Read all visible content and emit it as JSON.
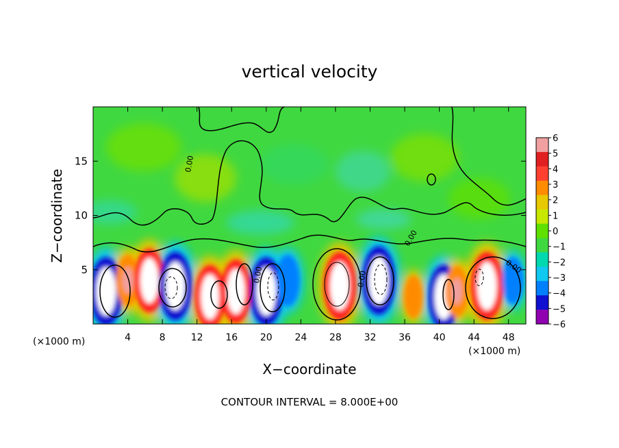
{
  "chart_data": {
    "type": "heatmap",
    "title": "vertical velocity",
    "xlabel": "X−coordinate",
    "ylabel": "Z−coordinate",
    "x_unit_left": "(×1000 m)",
    "x_unit_right": "(×1000 m)",
    "xlim": [
      0,
      50
    ],
    "ylim": [
      0,
      20
    ],
    "x_ticks": [
      "4",
      "8",
      "12",
      "16",
      "20",
      "24",
      "28",
      "32",
      "36",
      "40",
      "44",
      "48"
    ],
    "y_ticks": [
      "5",
      "10",
      "15"
    ],
    "x_tick_values": [
      4,
      8,
      12,
      16,
      20,
      24,
      28,
      32,
      36,
      40,
      44,
      48
    ],
    "y_tick_values": [
      5,
      10,
      15
    ],
    "colorbar": {
      "labels": [
        "6",
        "5",
        "4",
        "3",
        "2",
        "1",
        "0",
        "−1",
        "−2",
        "−3",
        "−4",
        "−5",
        "−6"
      ],
      "values": [
        6,
        5,
        4,
        3,
        2,
        1,
        0,
        -1,
        -2,
        -3,
        -4,
        -5,
        -6
      ],
      "colors": [
        "#f0a0a0",
        "#e02020",
        "#ff4030",
        "#ff8c00",
        "#e8c800",
        "#c8e800",
        "#60e000",
        "#40d840",
        "#00d8b0",
        "#10c8f0",
        "#0080ff",
        "#1010d0",
        "#9000b0"
      ]
    },
    "contour_label": "0.00",
    "footnote": "CONTOUR INTERVAL = 8.000E+00",
    "cells": [
      {
        "x": 1.5,
        "z": 3.0,
        "w": -9
      },
      {
        "x": 4.0,
        "z": 4.0,
        "w": 5
      },
      {
        "x": 6.5,
        "z": 4.0,
        "w": 8
      },
      {
        "x": 9.5,
        "z": 3.5,
        "w": -9
      },
      {
        "x": 13.5,
        "z": 2.5,
        "w": 8
      },
      {
        "x": 16.5,
        "z": 3.0,
        "w": 8
      },
      {
        "x": 20.0,
        "z": 3.0,
        "w": -9
      },
      {
        "x": 22.5,
        "z": 4.0,
        "w": -5
      },
      {
        "x": 28.5,
        "z": 3.5,
        "w": 9
      },
      {
        "x": 33.0,
        "z": 4.0,
        "w": -9
      },
      {
        "x": 37.0,
        "z": 2.5,
        "w": 3
      },
      {
        "x": 40.5,
        "z": 2.5,
        "w": -8
      },
      {
        "x": 42.0,
        "z": 3.0,
        "w": 5
      },
      {
        "x": 45.5,
        "z": 3.5,
        "w": 9
      },
      {
        "x": 48.5,
        "z": 4.0,
        "w": -4
      }
    ]
  }
}
